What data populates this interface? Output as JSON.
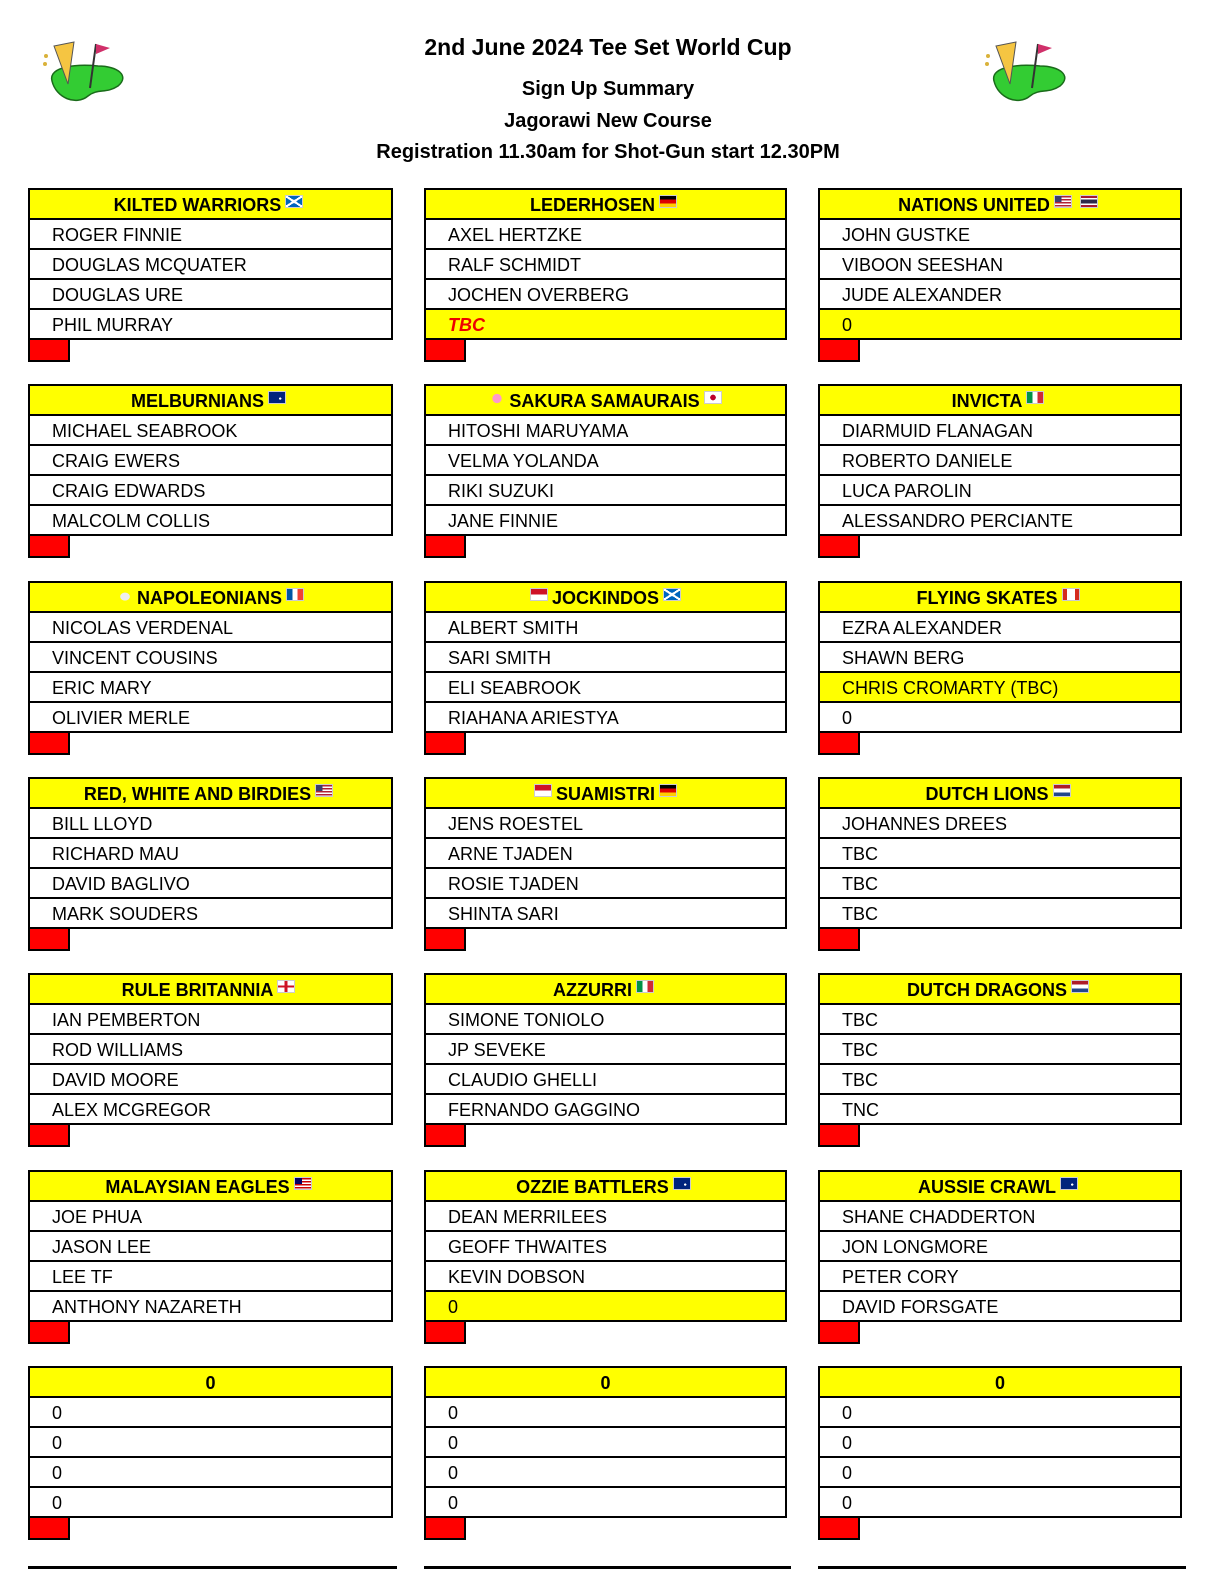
{
  "header": {
    "title": "2nd June 2024 Tee Set World Cup",
    "subtitle": "Sign Up Summary",
    "course": "Jagorawi New Course",
    "registration": "Registration 11.30am for Shot-Gun start 12.30PM",
    "logo_icon": "golf-green-beer-flag-logo"
  },
  "colors": {
    "header_bg": "#ffff00",
    "marker": "#ff0000",
    "tbc_text": "#e00000"
  },
  "teams": [
    {
      "name": "KILTED WARRIORS",
      "flags_before": [],
      "flags_after": [
        "scotland"
      ],
      "players": [
        {
          "name": "ROGER FINNIE"
        },
        {
          "name": "DOUGLAS MCQUATER"
        },
        {
          "name": "DOUGLAS URE"
        },
        {
          "name": "PHIL MURRAY"
        }
      ]
    },
    {
      "name": "LEDERHOSEN",
      "flags_before": [],
      "flags_after": [
        "germany"
      ],
      "players": [
        {
          "name": "AXEL HERTZKE"
        },
        {
          "name": "RALF SCHMIDT"
        },
        {
          "name": "JOCHEN OVERBERG"
        },
        {
          "name": "TBC",
          "highlight": true,
          "tbc": true
        }
      ]
    },
    {
      "name": "NATIONS UNITED",
      "flags_before": [],
      "flags_after": [
        "usa",
        "thailand"
      ],
      "players": [
        {
          "name": "JOHN GUSTKE"
        },
        {
          "name": "VIBOON SEESHAN"
        },
        {
          "name": "JUDE ALEXANDER"
        },
        {
          "name": "0",
          "highlight": true
        }
      ]
    },
    {
      "name": "MELBURNIANS",
      "flags_before": [],
      "flags_after": [
        "australia"
      ],
      "players": [
        {
          "name": "MICHAEL SEABROOK"
        },
        {
          "name": "CRAIG EWERS"
        },
        {
          "name": "CRAIG EDWARDS"
        },
        {
          "name": "MALCOLM COLLIS"
        }
      ]
    },
    {
      "name": "SAKURA SAMAURAIS",
      "flags_before": [
        "blossom"
      ],
      "flags_after": [
        "japan"
      ],
      "players": [
        {
          "name": "HITOSHI MARUYAMA"
        },
        {
          "name": "VELMA YOLANDA"
        },
        {
          "name": "RIKI SUZUKI"
        },
        {
          "name": "JANE FINNIE"
        }
      ]
    },
    {
      "name": "INVICTA",
      "flags_before": [],
      "flags_after": [
        "italy"
      ],
      "players": [
        {
          "name": "DIARMUID FLANAGAN"
        },
        {
          "name": "ROBERTO DANIELE"
        },
        {
          "name": "LUCA PAROLIN"
        },
        {
          "name": "ALESSANDRO PERCIANTE"
        }
      ]
    },
    {
      "name": "NAPOLEONIANS",
      "flags_before": [
        "rooster"
      ],
      "flags_after": [
        "france"
      ],
      "players": [
        {
          "name": "NICOLAS VERDENAL"
        },
        {
          "name": "VINCENT COUSINS"
        },
        {
          "name": "ERIC MARY"
        },
        {
          "name": "OLIVIER MERLE"
        }
      ]
    },
    {
      "name": "JOCKINDOS",
      "flags_before": [
        "indonesia"
      ],
      "flags_after": [
        "scotland"
      ],
      "players": [
        {
          "name": "ALBERT SMITH"
        },
        {
          "name": "SARI SMITH"
        },
        {
          "name": "ELI SEABROOK"
        },
        {
          "name": "RIAHANA ARIESTYA"
        }
      ]
    },
    {
      "name": "FLYING SKATES",
      "flags_before": [],
      "flags_after": [
        "canada"
      ],
      "players": [
        {
          "name": "EZRA ALEXANDER"
        },
        {
          "name": "SHAWN BERG"
        },
        {
          "name": "CHRIS CROMARTY (TBC)",
          "highlight": true
        },
        {
          "name": "0"
        }
      ]
    },
    {
      "name": "RED, WHITE AND BIRDIES",
      "flags_before": [],
      "flags_after": [
        "usa"
      ],
      "players": [
        {
          "name": "BILL LLOYD"
        },
        {
          "name": "RICHARD MAU"
        },
        {
          "name": "DAVID BAGLIVO"
        },
        {
          "name": "MARK SOUDERS"
        }
      ]
    },
    {
      "name": "SUAMISTRI",
      "flags_before": [
        "indonesia"
      ],
      "flags_after": [
        "germany"
      ],
      "players": [
        {
          "name": "JENS ROESTEL"
        },
        {
          "name": "ARNE TJADEN"
        },
        {
          "name": "ROSIE TJADEN"
        },
        {
          "name": "SHINTA SARI"
        }
      ]
    },
    {
      "name": "DUTCH LIONS",
      "flags_before": [],
      "flags_after": [
        "netherlands"
      ],
      "players": [
        {
          "name": "JOHANNES DREES"
        },
        {
          "name": "TBC"
        },
        {
          "name": "TBC"
        },
        {
          "name": "TBC"
        }
      ]
    },
    {
      "name": "RULE BRITANNIA",
      "flags_before": [],
      "flags_after": [
        "england"
      ],
      "players": [
        {
          "name": "IAN PEMBERTON"
        },
        {
          "name": "ROD WILLIAMS"
        },
        {
          "name": "DAVID MOORE"
        },
        {
          "name": "ALEX MCGREGOR"
        }
      ]
    },
    {
      "name": "AZZURRI",
      "flags_before": [],
      "flags_after": [
        "italy"
      ],
      "players": [
        {
          "name": "SIMONE TONIOLO"
        },
        {
          "name": "JP SEVEKE"
        },
        {
          "name": "CLAUDIO GHELLI"
        },
        {
          "name": "FERNANDO GAGGINO"
        }
      ]
    },
    {
      "name": "DUTCH DRAGONS",
      "flags_before": [],
      "flags_after": [
        "netherlands"
      ],
      "players": [
        {
          "name": "TBC"
        },
        {
          "name": "TBC"
        },
        {
          "name": "TBC"
        },
        {
          "name": "TNC"
        }
      ]
    },
    {
      "name": "MALAYSIAN EAGLES",
      "flags_before": [],
      "flags_after": [
        "malaysia"
      ],
      "players": [
        {
          "name": "JOE PHUA"
        },
        {
          "name": "JASON LEE"
        },
        {
          "name": "LEE TF"
        },
        {
          "name": "ANTHONY NAZARETH"
        }
      ]
    },
    {
      "name": "OZZIE BATTLERS",
      "flags_before": [],
      "flags_after": [
        "australia"
      ],
      "players": [
        {
          "name": "DEAN MERRILEES"
        },
        {
          "name": "GEOFF THWAITES"
        },
        {
          "name": "KEVIN DOBSON"
        },
        {
          "name": "0",
          "highlight": true
        }
      ]
    },
    {
      "name": "AUSSIE CRAWL",
      "flags_before": [],
      "flags_after": [
        "australia"
      ],
      "players": [
        {
          "name": "SHANE CHADDERTON"
        },
        {
          "name": "JON LONGMORE"
        },
        {
          "name": "PETER CORY"
        },
        {
          "name": "DAVID FORSGATE"
        }
      ]
    },
    {
      "name": "0",
      "flags_before": [],
      "flags_after": [],
      "players": [
        {
          "name": "0"
        },
        {
          "name": "0"
        },
        {
          "name": "0"
        },
        {
          "name": "0"
        }
      ]
    },
    {
      "name": "0",
      "flags_before": [],
      "flags_after": [],
      "players": [
        {
          "name": "0"
        },
        {
          "name": "0"
        },
        {
          "name": "0"
        },
        {
          "name": "0"
        }
      ]
    },
    {
      "name": "0",
      "flags_before": [],
      "flags_after": [],
      "players": [
        {
          "name": "0"
        },
        {
          "name": "0"
        },
        {
          "name": "0"
        },
        {
          "name": "0"
        }
      ]
    }
  ]
}
